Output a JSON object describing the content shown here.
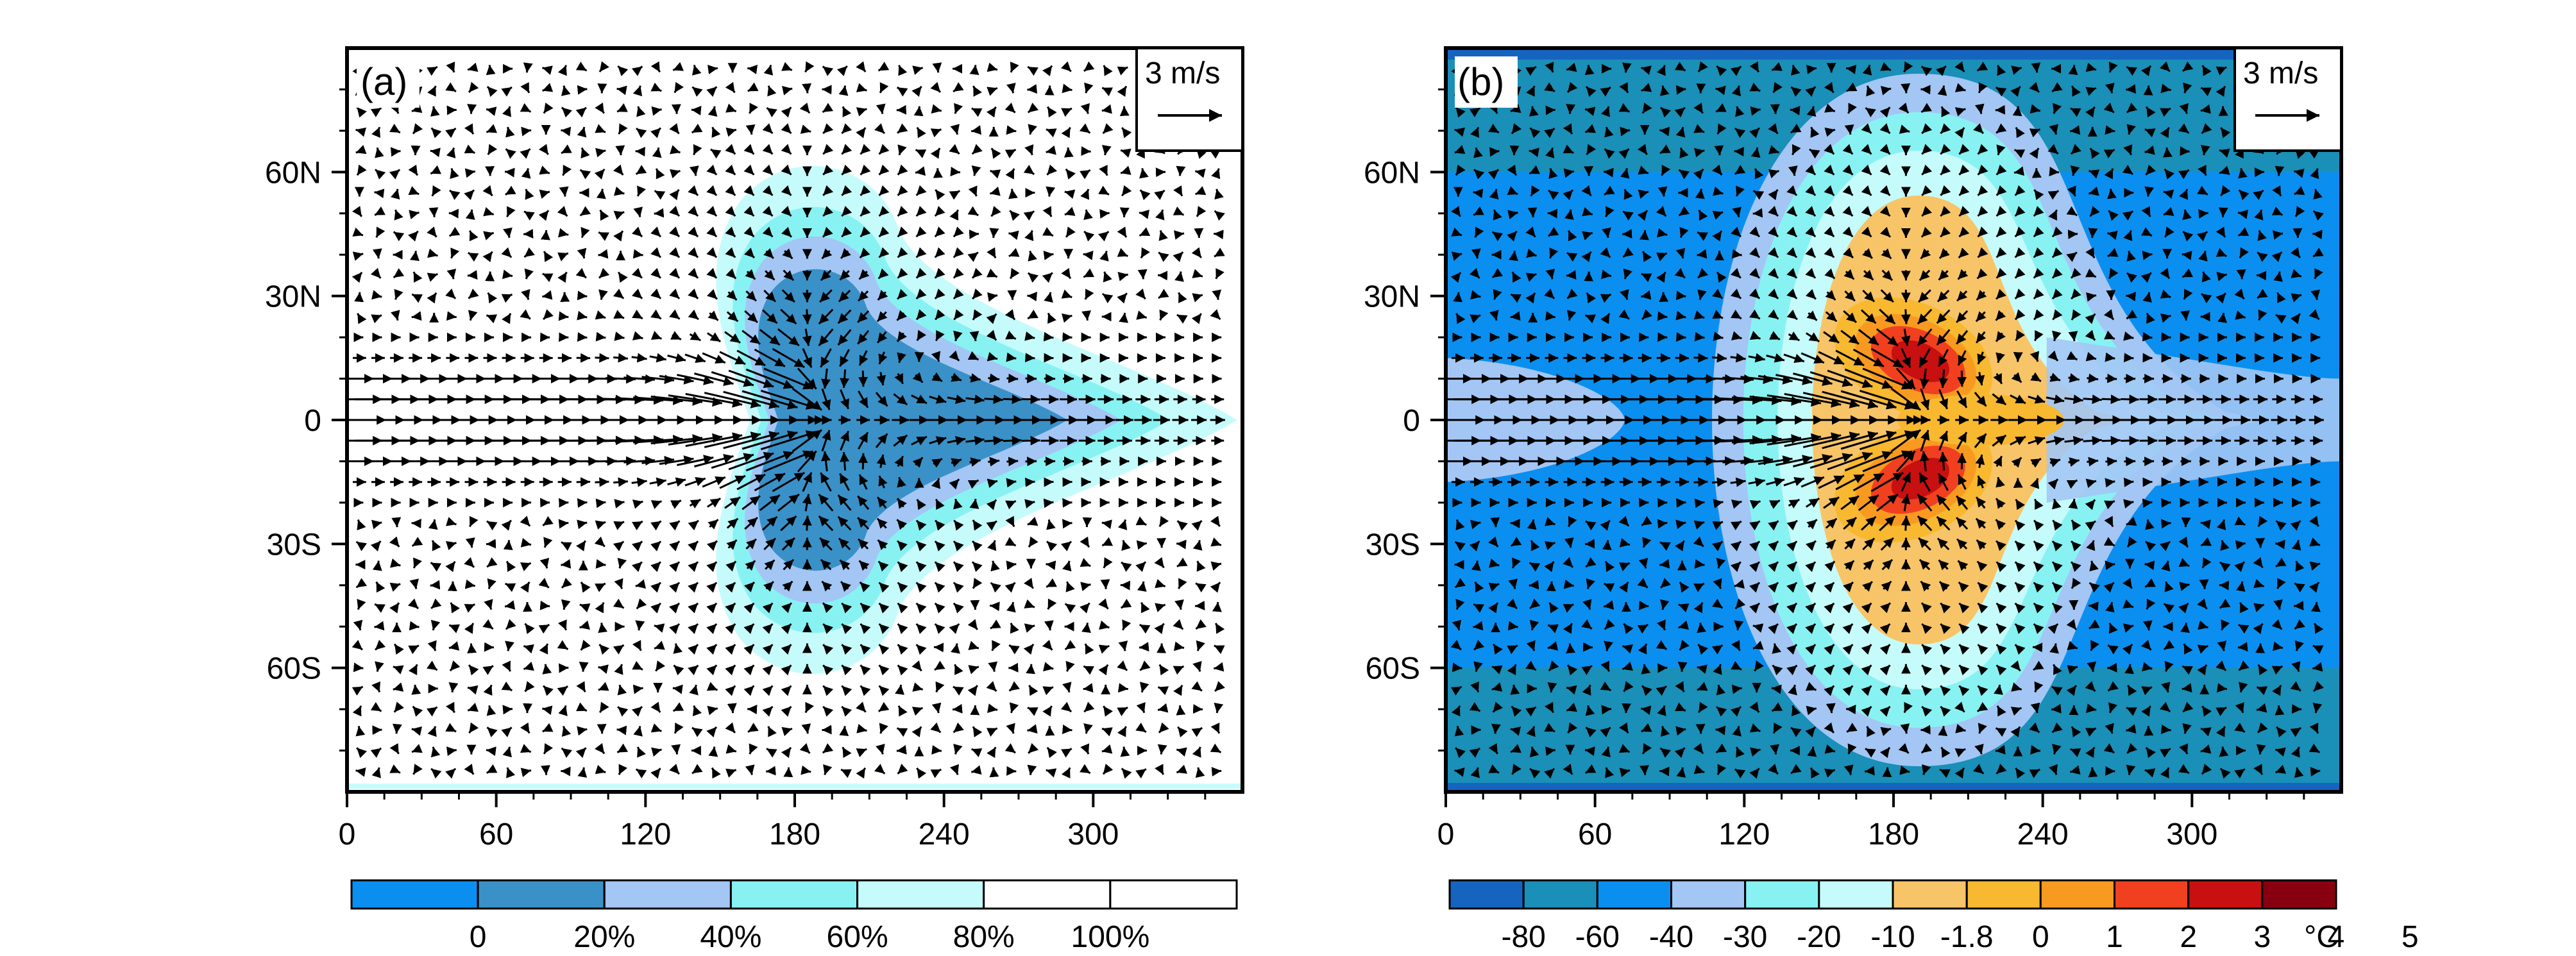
{
  "chart_data": [
    {
      "type": "contour+vector",
      "panel_label": "(a)",
      "xlim": [
        0,
        360
      ],
      "ylim": [
        -90,
        90
      ],
      "xticks": [
        "0",
        "60",
        "120",
        "180",
        "240",
        "300"
      ],
      "yticks": [
        "60N",
        "30N",
        "0",
        "30S",
        "60S"
      ],
      "ytick_values": [
        60,
        30,
        0,
        -30,
        -60
      ],
      "xtick_values": [
        0,
        60,
        120,
        180,
        240,
        300
      ],
      "reference_vector": "3 m/s",
      "reference_vector_magnitude": 3,
      "colorbar": {
        "colors": [
          "#0a8ff0",
          "#3a91c8",
          "#a3c6f4",
          "#88f2f2",
          "#c6fbfb",
          "#ffffff",
          "#ffffff"
        ],
        "labels": [
          "0",
          "20%",
          "40%",
          "60%",
          "80%",
          "100%"
        ]
      },
      "field_center": [
        190,
        0
      ],
      "levels_shown": [
        "#a3c6f4",
        "#88f2f2",
        "#c6fbfb",
        "#3a91c8"
      ]
    },
    {
      "type": "contour+vector",
      "panel_label": "(b)",
      "xlim": [
        0,
        360
      ],
      "ylim": [
        -90,
        90
      ],
      "xticks": [
        "0",
        "60",
        "120",
        "180",
        "240",
        "300"
      ],
      "yticks": [
        "60N",
        "30N",
        "0",
        "30S",
        "60S"
      ],
      "ytick_values": [
        60,
        30,
        0,
        -30,
        -60
      ],
      "xtick_values": [
        0,
        60,
        120,
        180,
        240,
        300
      ],
      "reference_vector": "3 m/s",
      "reference_vector_magnitude": 3,
      "colorbar": {
        "colors": [
          "#1565c0",
          "#1a8fb8",
          "#0a8ff0",
          "#a3c6f4",
          "#88f2f2",
          "#c6fbfb",
          "#f8c468",
          "#f8b830",
          "#f89a20",
          "#f04020",
          "#c81010",
          "#880010"
        ],
        "labels": [
          "-80",
          "-60",
          "-40",
          "-30",
          "-20",
          "-10",
          "-1.8",
          "0",
          "1",
          "2",
          "3",
          "4",
          "5"
        ],
        "unit": "°C"
      },
      "field_center": [
        190,
        0
      ]
    }
  ],
  "colors": {
    "background": "#ffffff",
    "axis": "#000000",
    "arrow": "#000000"
  }
}
